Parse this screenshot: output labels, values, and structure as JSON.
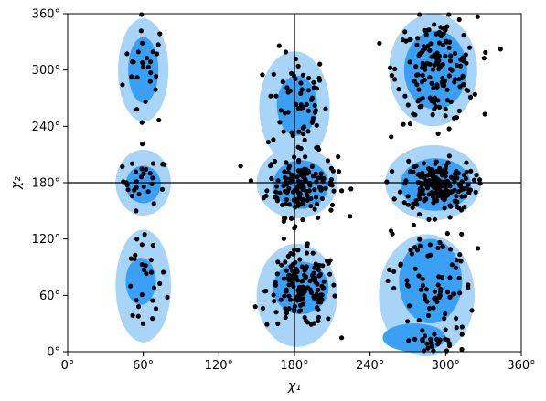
{
  "chart_data": {
    "type": "scatter",
    "title": "",
    "xlabel": "χ₁",
    "ylabel": "χ₂",
    "xlim": [
      0,
      360
    ],
    "ylim": [
      0,
      360
    ],
    "xticks": [
      0,
      60,
      120,
      180,
      240,
      300,
      360
    ],
    "yticks": [
      0,
      60,
      120,
      180,
      240,
      300,
      360
    ],
    "xtick_labels": [
      "0°",
      "60°",
      "120°",
      "180°",
      "240°",
      "300°",
      "360°"
    ],
    "ytick_labels": [
      "0°",
      "60°",
      "120°",
      "180°",
      "240°",
      "300°",
      "360°"
    ],
    "reference_lines": {
      "x": 180,
      "y": 180
    },
    "grid": false,
    "colors": {
      "density_low": "#a8d4f7",
      "density_high": "#3aa0f5",
      "points": "#000000",
      "reference_lines": "#000000"
    },
    "density_regions": [
      {
        "level": "low",
        "x": 60,
        "y": 300,
        "rx": 20,
        "ry": 55
      },
      {
        "level": "low",
        "x": 60,
        "y": 180,
        "rx": 22,
        "ry": 35
      },
      {
        "level": "low",
        "x": 60,
        "y": 70,
        "rx": 22,
        "ry": 60
      },
      {
        "level": "low",
        "x": 180,
        "y": 260,
        "rx": 28,
        "ry": 60
      },
      {
        "level": "low",
        "x": 182,
        "y": 180,
        "rx": 32,
        "ry": 38
      },
      {
        "level": "low",
        "x": 182,
        "y": 60,
        "rx": 32,
        "ry": 55
      },
      {
        "level": "low",
        "x": 290,
        "y": 300,
        "rx": 35,
        "ry": 60
      },
      {
        "level": "low",
        "x": 290,
        "y": 180,
        "rx": 38,
        "ry": 40
      },
      {
        "level": "low",
        "x": 285,
        "y": 60,
        "rx": 38,
        "ry": 65
      },
      {
        "level": "high",
        "x": 60,
        "y": 300,
        "rx": 12,
        "ry": 35
      },
      {
        "level": "high",
        "x": 60,
        "y": 178,
        "rx": 14,
        "ry": 20
      },
      {
        "level": "high",
        "x": 58,
        "y": 75,
        "rx": 12,
        "ry": 25
      },
      {
        "level": "high",
        "x": 182,
        "y": 262,
        "rx": 16,
        "ry": 32
      },
      {
        "level": "high",
        "x": 185,
        "y": 178,
        "rx": 22,
        "ry": 26
      },
      {
        "level": "high",
        "x": 185,
        "y": 68,
        "rx": 22,
        "ry": 28
      },
      {
        "level": "high",
        "x": 292,
        "y": 300,
        "rx": 25,
        "ry": 42
      },
      {
        "level": "high",
        "x": 292,
        "y": 178,
        "rx": 28,
        "ry": 28
      },
      {
        "level": "high",
        "x": 288,
        "y": 75,
        "rx": 25,
        "ry": 45
      },
      {
        "level": "high",
        "x": 275,
        "y": 15,
        "rx": 25,
        "ry": 15
      }
    ],
    "clusters": [
      {
        "x": 62,
        "y": 300,
        "sx": 9,
        "sy": 30,
        "n": 28
      },
      {
        "x": 62,
        "y": 182,
        "sx": 9,
        "sy": 12,
        "n": 28
      },
      {
        "x": 60,
        "y": 75,
        "sx": 9,
        "sy": 30,
        "n": 28
      },
      {
        "x": 182,
        "y": 265,
        "sx": 12,
        "sy": 28,
        "n": 60
      },
      {
        "x": 186,
        "y": 178,
        "sx": 14,
        "sy": 17,
        "n": 150
      },
      {
        "x": 186,
        "y": 66,
        "sx": 14,
        "sy": 20,
        "n": 150
      },
      {
        "x": 293,
        "y": 300,
        "sx": 16,
        "sy": 28,
        "n": 160
      },
      {
        "x": 294,
        "y": 178,
        "sx": 14,
        "sy": 13,
        "n": 190
      },
      {
        "x": 290,
        "y": 70,
        "sx": 16,
        "sy": 40,
        "n": 90
      },
      {
        "x": 290,
        "y": 10,
        "sx": 10,
        "sy": 8,
        "n": 18
      }
    ]
  }
}
